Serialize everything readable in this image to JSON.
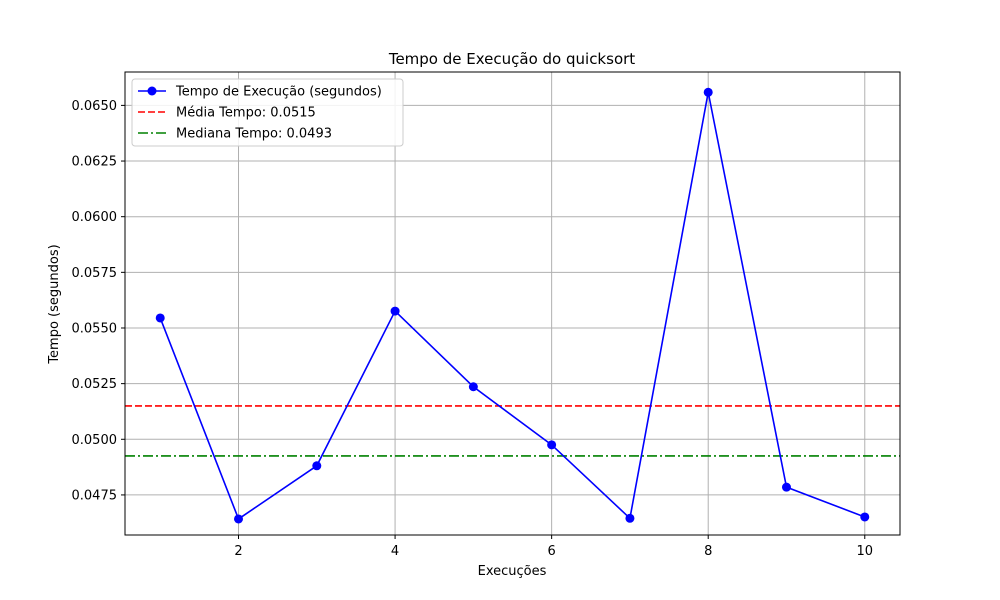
{
  "chart_data": {
    "type": "line",
    "title": "Tempo de Execução do quicksort",
    "xlabel": "Execuções",
    "ylabel": "Tempo (segundos)",
    "xlim": [
      0.55,
      10.45
    ],
    "ylim": [
      0.0457,
      0.0665
    ],
    "xticks": [
      2,
      4,
      6,
      8,
      10
    ],
    "yticks": [
      0.0475,
      0.05,
      0.0525,
      0.055,
      0.0575,
      0.06,
      0.0625,
      0.065
    ],
    "ytick_labels": [
      "0.0475",
      "0.0500",
      "0.0525",
      "0.0550",
      "0.0575",
      "0.0600",
      "0.0625",
      "0.0650"
    ],
    "grid": true,
    "legend_position": "upper-left",
    "series": [
      {
        "name": "Tempo de Execução (segundos)",
        "color": "#0000ff",
        "marker": "circle",
        "line": "solid",
        "x": [
          1,
          2,
          3,
          4,
          5,
          6,
          7,
          8,
          9,
          10
        ],
        "y": [
          0.05545,
          0.04642,
          0.04881,
          0.05576,
          0.05236,
          0.04975,
          0.04645,
          0.06559,
          0.04785,
          0.04651
        ]
      }
    ],
    "reference_lines": [
      {
        "name": "Média Tempo: 0.0515",
        "value": 0.0515,
        "color": "#ff0000",
        "style": "dashed"
      },
      {
        "name": "Mediana Tempo: 0.0493",
        "value": 0.04925,
        "color": "#008000",
        "style": "dashdot"
      }
    ]
  }
}
